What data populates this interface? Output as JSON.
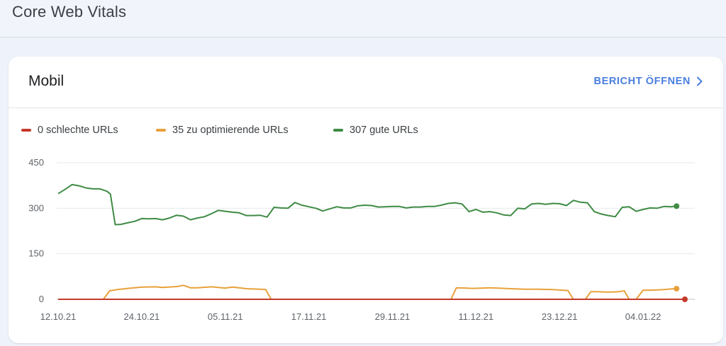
{
  "page": {
    "title": "Core Web Vitals"
  },
  "card": {
    "title": "Mobil",
    "report_button": "BERICHT ÖFFNEN",
    "report_button_icon": "chevron-right-icon"
  },
  "colors": {
    "poor": "#c5392b",
    "needs_improvement": "#e8a13a",
    "good": "#3f8b45",
    "accent": "#4a7fe0",
    "grid": "#e8eaed"
  },
  "legend": [
    {
      "key": "poor",
      "label": "0 schlechte URLs"
    },
    {
      "key": "needs_improvement",
      "label": "35 zu optimierende URLs"
    },
    {
      "key": "good",
      "label": "307 gute URLs"
    }
  ],
  "chart_data": {
    "type": "line",
    "x_start": "12.10.21",
    "x_tick_labels": [
      "12.10.21",
      "24.10.21",
      "05.11.21",
      "17.11.21",
      "29.11.21",
      "11.12.21",
      "23.12.21",
      "04.01.22"
    ],
    "y_ticks": [
      0,
      150,
      300,
      450
    ],
    "ylim": [
      0,
      450
    ],
    "series": [
      {
        "name": "0 schlechte URLs",
        "key": "poor",
        "points": [
          [
            0,
            0
          ],
          [
            90,
            0
          ]
        ]
      },
      {
        "name": "35 zu optimierende URLs",
        "key": "needs_improvement",
        "points": [
          [
            0,
            0
          ],
          [
            6.5,
            0
          ],
          [
            7.4,
            28
          ],
          [
            8.5,
            32
          ],
          [
            10,
            36
          ],
          [
            12,
            40
          ],
          [
            14,
            41
          ],
          [
            15,
            39
          ],
          [
            17,
            42
          ],
          [
            18,
            46
          ],
          [
            19,
            38
          ],
          [
            20,
            38
          ],
          [
            22,
            41
          ],
          [
            23,
            39
          ],
          [
            24,
            37
          ],
          [
            25,
            40
          ],
          [
            26,
            38
          ],
          [
            27,
            35
          ],
          [
            28,
            34
          ],
          [
            29,
            33
          ],
          [
            29.8,
            32
          ],
          [
            30.6,
            0
          ],
          [
            56.4,
            0
          ],
          [
            57.2,
            38
          ],
          [
            58.5,
            37
          ],
          [
            59.5,
            36
          ],
          [
            61,
            37
          ],
          [
            62,
            38
          ],
          [
            63,
            37
          ],
          [
            65,
            35
          ],
          [
            67,
            33
          ],
          [
            69,
            33
          ],
          [
            71,
            32
          ],
          [
            72.5,
            30
          ],
          [
            73.2,
            29
          ],
          [
            74,
            0
          ],
          [
            75.7,
            0
          ],
          [
            76.5,
            25
          ],
          [
            77.5,
            25
          ],
          [
            78.5,
            24
          ],
          [
            79.5,
            24
          ],
          [
            80.5,
            25
          ],
          [
            81.3,
            28
          ],
          [
            82,
            0
          ],
          [
            83,
            0
          ],
          [
            84,
            30
          ],
          [
            85,
            30
          ],
          [
            86,
            31
          ],
          [
            87,
            32
          ],
          [
            88,
            34
          ],
          [
            88.8,
            35
          ]
        ]
      },
      {
        "name": "307 gute URLs",
        "key": "good",
        "points": [
          [
            0,
            348
          ],
          [
            1,
            362
          ],
          [
            2,
            378
          ],
          [
            3,
            374
          ],
          [
            4,
            367
          ],
          [
            5,
            364
          ],
          [
            6,
            364
          ],
          [
            7,
            356
          ],
          [
            7.5,
            347
          ],
          [
            8.2,
            246
          ],
          [
            9,
            247
          ],
          [
            10,
            252
          ],
          [
            11,
            257
          ],
          [
            12,
            266
          ],
          [
            13,
            265
          ],
          [
            14,
            266
          ],
          [
            15,
            262
          ],
          [
            16,
            268
          ],
          [
            17,
            277
          ],
          [
            18,
            274
          ],
          [
            19,
            262
          ],
          [
            20,
            268
          ],
          [
            21,
            272
          ],
          [
            22,
            282
          ],
          [
            23,
            293
          ],
          [
            24,
            290
          ],
          [
            25,
            287
          ],
          [
            26,
            285
          ],
          [
            27,
            276
          ],
          [
            28,
            276
          ],
          [
            29,
            277
          ],
          [
            30,
            271
          ],
          [
            31,
            303
          ],
          [
            32,
            301
          ],
          [
            33,
            300
          ],
          [
            34,
            319
          ],
          [
            35,
            310
          ],
          [
            36,
            305
          ],
          [
            37,
            300
          ],
          [
            38,
            291
          ],
          [
            39,
            298
          ],
          [
            40,
            305
          ],
          [
            41,
            301
          ],
          [
            42,
            301
          ],
          [
            43,
            308
          ],
          [
            44,
            310
          ],
          [
            45,
            309
          ],
          [
            46,
            304
          ],
          [
            47,
            305
          ],
          [
            48,
            306
          ],
          [
            49,
            306
          ],
          [
            50,
            301
          ],
          [
            51,
            304
          ],
          [
            52,
            304
          ],
          [
            53,
            306
          ],
          [
            54,
            306
          ],
          [
            55,
            310
          ],
          [
            56,
            316
          ],
          [
            57,
            318
          ],
          [
            58,
            314
          ],
          [
            59,
            289
          ],
          [
            60,
            296
          ],
          [
            61,
            287
          ],
          [
            62,
            289
          ],
          [
            63,
            285
          ],
          [
            64,
            278
          ],
          [
            65,
            276
          ],
          [
            66,
            300
          ],
          [
            67,
            298
          ],
          [
            68,
            314
          ],
          [
            69,
            316
          ],
          [
            70,
            313
          ],
          [
            71,
            316
          ],
          [
            72,
            315
          ],
          [
            73,
            309
          ],
          [
            74,
            326
          ],
          [
            75,
            320
          ],
          [
            76,
            318
          ],
          [
            77,
            289
          ],
          [
            78,
            281
          ],
          [
            79,
            276
          ],
          [
            80,
            272
          ],
          [
            81,
            303
          ],
          [
            82,
            305
          ],
          [
            83,
            290
          ],
          [
            84,
            296
          ],
          [
            85,
            301
          ],
          [
            86,
            300
          ],
          [
            87,
            306
          ],
          [
            88,
            305
          ],
          [
            88.8,
            307
          ]
        ]
      }
    ]
  }
}
